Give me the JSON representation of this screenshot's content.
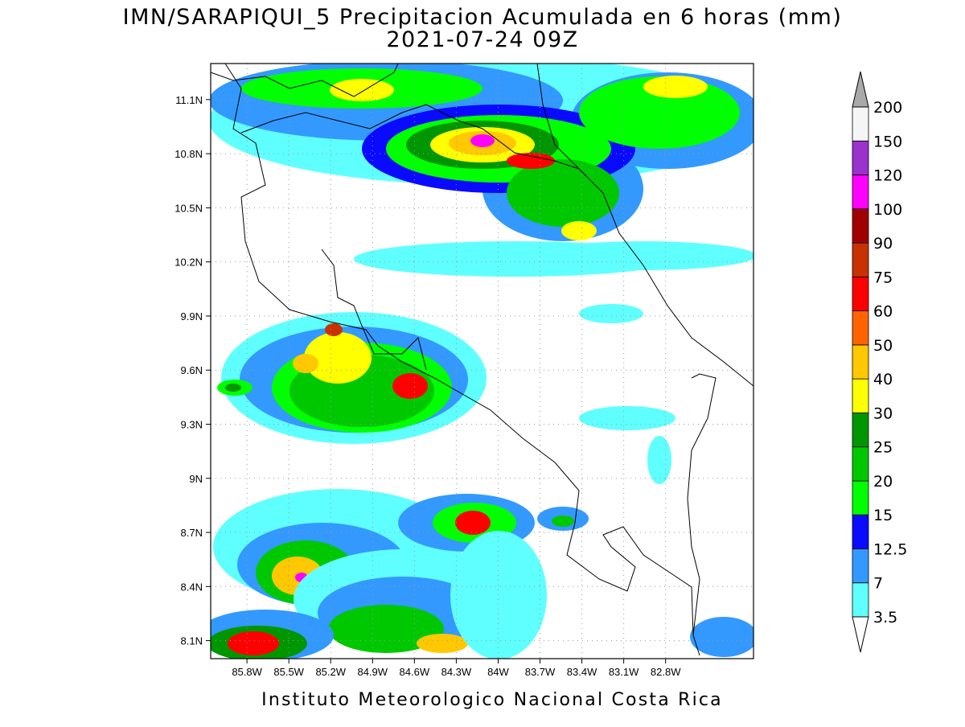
{
  "title": "IMN/SARAPIQUI_5 Precipitacion Acumulada en 6 horas (mm)",
  "subtitle": "2021-07-24 09Z",
  "footer": "Instituto Meteorologico Nacional Costa Rica",
  "map": {
    "xlim": [
      -86.06,
      -82.17
    ],
    "ylim": [
      8.0,
      11.3
    ],
    "grid": true,
    "xticks": [
      {
        "value": -85.8,
        "label": "85.8W"
      },
      {
        "value": -85.5,
        "label": "85.5W"
      },
      {
        "value": -85.2,
        "label": "85.2W"
      },
      {
        "value": -84.9,
        "label": "84.9W"
      },
      {
        "value": -84.6,
        "label": "84.6W"
      },
      {
        "value": -84.3,
        "label": "84.3W"
      },
      {
        "value": -84.0,
        "label": "84W"
      },
      {
        "value": -83.7,
        "label": "83.7W"
      },
      {
        "value": -83.4,
        "label": "83.4W"
      },
      {
        "value": -83.1,
        "label": "83.1W"
      },
      {
        "value": -82.8,
        "label": "82.8W"
      }
    ],
    "yticks": [
      {
        "value": 8.1,
        "label": "8.1N"
      },
      {
        "value": 8.4,
        "label": "8.4N"
      },
      {
        "value": 8.7,
        "label": "8.7N"
      },
      {
        "value": 9.0,
        "label": "9N"
      },
      {
        "value": 9.3,
        "label": "9.3N"
      },
      {
        "value": 9.6,
        "label": "9.6N"
      },
      {
        "value": 9.9,
        "label": "9.9N"
      },
      {
        "value": 10.2,
        "label": "10.2N"
      },
      {
        "value": 10.5,
        "label": "10.5N"
      },
      {
        "value": 10.8,
        "label": "10.8N"
      },
      {
        "value": 11.1,
        "label": "11.1N"
      }
    ]
  },
  "colorbar": {
    "levels": [
      3.5,
      7,
      12.5,
      15,
      20,
      25,
      30,
      40,
      50,
      60,
      75,
      90,
      100,
      120,
      150,
      200
    ],
    "colors": [
      "#60ffff",
      "#3399ff",
      "#0a0aff",
      "#00ff00",
      "#00c800",
      "#009600",
      "#ffff00",
      "#ffc800",
      "#ff6400",
      "#ff0000",
      "#c83200",
      "#a00000",
      "#ff00ff",
      "#9933cc",
      "#f5f5f5"
    ],
    "under_color": "#ffffff",
    "over_color": "#a9a9a9"
  }
}
